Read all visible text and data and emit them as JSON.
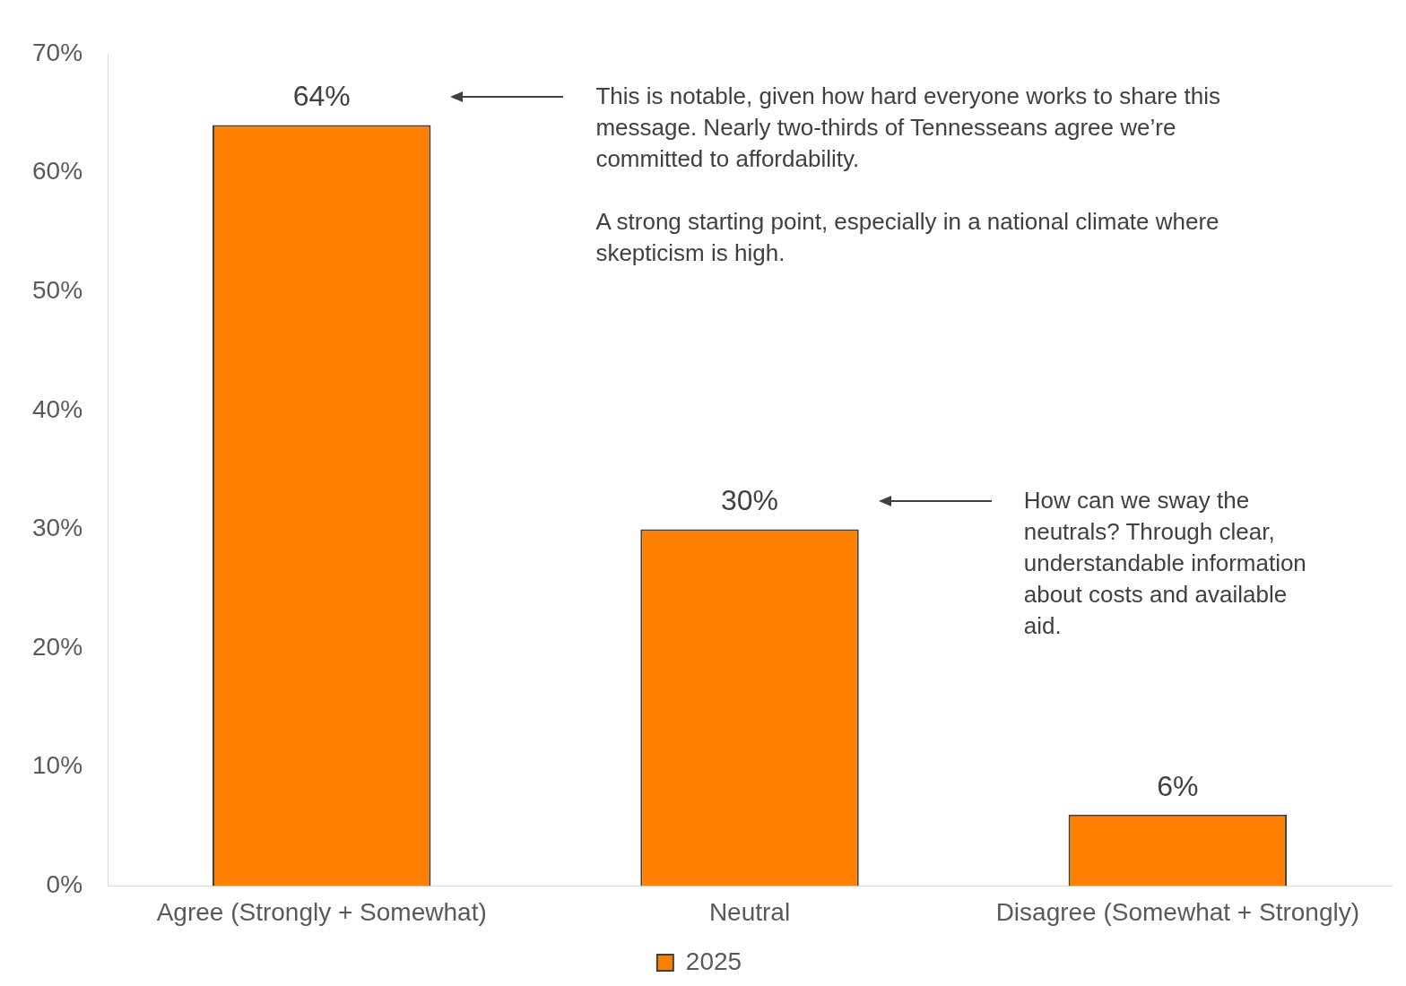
{
  "chart_data": {
    "type": "bar",
    "categories": [
      "Agree (Strongly + Somewhat)",
      "Neutral",
      "Disagree (Somewhat + Strongly)"
    ],
    "series": [
      {
        "name": "2025",
        "color": "#ff8000",
        "values": [
          64,
          30,
          6
        ],
        "value_labels": [
          "64%",
          "30%",
          "6%"
        ]
      }
    ],
    "ylim": [
      0,
      70
    ],
    "yticks": [
      {
        "value": 0,
        "label": "0%"
      },
      {
        "value": 10,
        "label": "10%"
      },
      {
        "value": 20,
        "label": "20%"
      },
      {
        "value": 30,
        "label": "30%"
      },
      {
        "value": 40,
        "label": "40%"
      },
      {
        "value": 50,
        "label": "50%"
      },
      {
        "value": 60,
        "label": "60%"
      },
      {
        "value": 70,
        "label": "70%"
      }
    ],
    "grid": false,
    "legend": "bottom",
    "annotations": [
      "This is notable, given how hard everyone works to share this message. Nearly two-thirds of Tennesseans agree we’re committed to affordability.",
      "A strong starting point, especially in a national climate where skepticism is high.",
      "How can we sway the neutrals? Through clear, understandable information about costs and available aid."
    ]
  }
}
